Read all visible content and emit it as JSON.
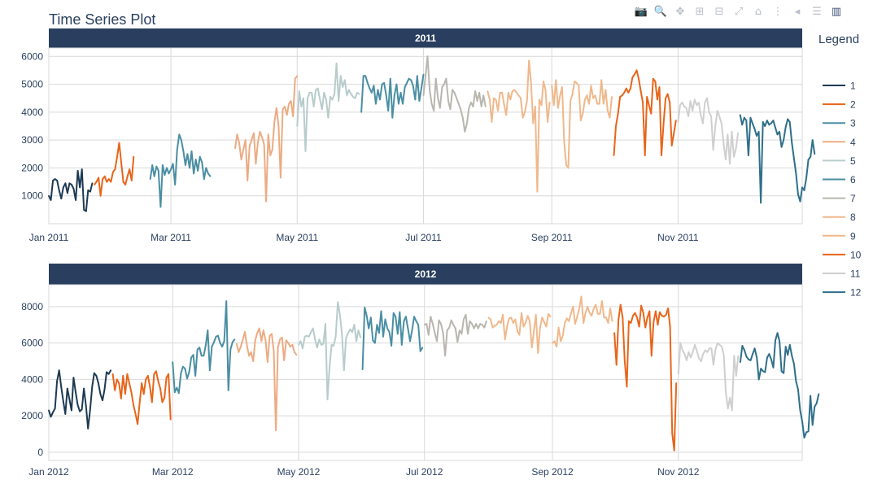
{
  "title": "Time Series Plot",
  "modebar": [
    {
      "name": "camera-icon",
      "glyph": "📷"
    },
    {
      "name": "zoom-icon",
      "glyph": "🔍"
    },
    {
      "name": "pan-icon",
      "glyph": "✥"
    },
    {
      "name": "zoom-in-icon",
      "glyph": "⊞"
    },
    {
      "name": "zoom-out-icon",
      "glyph": "⊟"
    },
    {
      "name": "autoscale-icon",
      "glyph": "⤢"
    },
    {
      "name": "reset-axes-icon",
      "glyph": "⌂"
    },
    {
      "name": "spike-lines-icon",
      "glyph": "⋮"
    },
    {
      "name": "hover-closest-icon",
      "glyph": "◂"
    },
    {
      "name": "hover-compare-icon",
      "glyph": "☰"
    },
    {
      "name": "plotly-logo-icon",
      "glyph": "▥"
    }
  ],
  "legend": {
    "title": "Legend"
  },
  "colors": {
    "panel_header": "#2a3f5f",
    "grid": "#d9d9d9",
    "tick_text": "#2a3f5f",
    "series": [
      "#1d3a52",
      "#e8651a",
      "#4a8ea3",
      "#ecab82",
      "#b7cccb",
      "#4a8ea3",
      "#b8b6ae",
      "#f0b88b",
      "#f0b88b",
      "#e8651a",
      "#cfcfcf",
      "#2e6f8a"
    ]
  },
  "chart_data": [
    {
      "type": "line",
      "title": "2011",
      "x_ticks": [
        "Jan 2011",
        "Mar 2011",
        "May 2011",
        "Jul 2011",
        "Sep 2011",
        "Nov 2011"
      ],
      "y_ticks": [
        1000,
        2000,
        3000,
        4000,
        5000,
        6000
      ],
      "ylim": [
        0,
        6300
      ],
      "xlabel": "",
      "ylabel": "",
      "series": [
        {
          "name": "1",
          "start": "2011-01-01",
          "values": [
            1000,
            850,
            1550,
            1600,
            1550,
            1200,
            900,
            1300,
            1450,
            1100,
            1450,
            1400,
            1250,
            850,
            1900,
            1300,
            1950,
            500,
            450,
            1200,
            1150,
            1450
          ]
        },
        {
          "name": "2",
          "start": "2011-01-23",
          "values": [
            1400,
            1500,
            1650,
            1000,
            1600,
            1700,
            1500,
            1600,
            1500,
            1850,
            1950,
            2400,
            2900,
            2200,
            1500,
            1400,
            1700,
            1950,
            1550,
            2400
          ]
        },
        {
          "name": "3",
          "start": "2011-02-19",
          "values": [
            1600,
            2100,
            1700,
            2050,
            1900,
            600,
            2100,
            1750,
            2000,
            1800,
            1950,
            2150,
            1400,
            2650,
            3200,
            3000,
            2600,
            2100,
            2500,
            2000,
            2600,
            1800,
            2300,
            1900,
            2400,
            2200,
            1600,
            2000,
            1800,
            1700
          ]
        },
        {
          "name": "4",
          "start": "2011-04-01",
          "values": [
            2700,
            3200,
            2900,
            2300,
            2650,
            3000,
            1550,
            2800,
            3000,
            3250,
            2150,
            2900,
            3300,
            3100,
            2850,
            800,
            3200,
            2450,
            2650,
            3650,
            4150,
            3500,
            1650,
            4100,
            4200,
            3900,
            4300,
            4400,
            3850,
            5200,
            5300
          ]
        },
        {
          "name": "5",
          "start": "2011-05-01",
          "values": [
            3500,
            4750,
            4200,
            4500,
            2600,
            4500,
            4700,
            4700,
            4200,
            4800,
            4850,
            4450,
            4100,
            4700,
            4450,
            3800,
            4550,
            4450,
            4650,
            5750,
            4400,
            5300,
            4900,
            5150,
            4600,
            4800,
            4650,
            4550,
            4500,
            4700,
            4650
          ]
        },
        {
          "name": "6",
          "start": "2011-06-01",
          "values": [
            4000,
            5300,
            5300,
            5050,
            4850,
            4700,
            4950,
            4300,
            4800,
            4450,
            5000,
            5050,
            4600,
            4050,
            5200,
            3800,
            4600,
            5000,
            4300,
            4700,
            4300,
            4900,
            5050,
            5200,
            5150,
            4950,
            4450,
            5300,
            4400,
            4850,
            5350
          ]
        },
        {
          "name": "7",
          "start": "2011-07-01",
          "values": [
            4600,
            5300,
            6000,
            4800,
            4300,
            4050,
            5200,
            4500,
            4150,
            4900,
            5000,
            5200,
            4400,
            4100,
            4800,
            4700,
            4500,
            4300,
            4100,
            3800,
            3300,
            3600,
            4150,
            4350,
            4200,
            4750,
            4400,
            4700,
            4200,
            4600,
            4200
          ]
        },
        {
          "name": "8",
          "start": "2011-08-01",
          "values": [
            4750,
            4450,
            3650,
            4500,
            4450,
            4050,
            4700,
            4700,
            4250,
            3900,
            4700,
            4450,
            4750,
            4800,
            4700,
            4600,
            4500,
            3800,
            4000,
            4400,
            5850,
            5050,
            3600,
            4200,
            1150,
            4450,
            4250,
            5100,
            4800,
            3650,
            4350
          ]
        },
        {
          "name": "9",
          "start": "2011-09-01",
          "values": [
            4950,
            4250,
            5150,
            4150,
            4600,
            4900,
            2950,
            2100,
            2000,
            4400,
            4650,
            5100,
            5050,
            4950,
            3700,
            3950,
            4450,
            4600,
            4300,
            4950,
            4500,
            4600,
            4300,
            4300,
            5150,
            4300,
            4800,
            4050,
            3800,
            4550
          ]
        },
        {
          "name": "10",
          "start": "2011-10-01",
          "values": [
            2450,
            3500,
            3950,
            4550,
            4600,
            4700,
            4850,
            4700,
            4850,
            5250,
            5350,
            5500,
            5200,
            4750,
            4350,
            2450,
            4550,
            4250,
            3950,
            5200,
            5100,
            4450,
            4900,
            2450,
            3600,
            4500,
            4650,
            4350,
            2800,
            3250,
            3700
          ]
        },
        {
          "name": "11",
          "start": "2011-11-01",
          "values": [
            3650,
            4250,
            4350,
            4200,
            4150,
            3850,
            4400,
            4050,
            4450,
            4250,
            4350,
            3900,
            3600,
            4350,
            4500,
            4000,
            3850,
            2650,
            3500,
            4050,
            3850,
            3600,
            2900,
            2300,
            3200,
            2150,
            3300,
            2400,
            2700,
            3250
          ]
        },
        {
          "name": "12",
          "start": "2011-12-01",
          "values": [
            3900,
            3550,
            3800,
            3700,
            2450,
            3800,
            3600,
            3400,
            3150,
            3300,
            750,
            3650,
            3500,
            3700,
            3550,
            3600,
            3700,
            3450,
            3200,
            3300,
            2750,
            3000,
            3450,
            3750,
            3650,
            2900,
            2350,
            1800,
            1050,
            800,
            1300,
            1200,
            1650,
            2300,
            2400,
            3000,
            2500
          ]
        }
      ]
    },
    {
      "type": "line",
      "title": "2012",
      "x_ticks": [
        "Jan 2012",
        "Mar 2012",
        "May 2012",
        "Jul 2012",
        "Sep 2012",
        "Nov 2012"
      ],
      "y_ticks": [
        0,
        2000,
        4000,
        6000,
        8000
      ],
      "ylim": [
        -450,
        9200
      ],
      "xlabel": "",
      "ylabel": "",
      "series": [
        {
          "name": "1",
          "start": "2012-01-01",
          "values": [
            2300,
            1950,
            2200,
            2400,
            3900,
            4500,
            3600,
            2800,
            2100,
            3500,
            2900,
            2300,
            4100,
            3300,
            2600,
            2250,
            2350,
            3500,
            2550,
            1300,
            2300,
            3600,
            4350,
            4200,
            3800,
            3200,
            2850,
            3450,
            4400,
            4300,
            4500
          ]
        },
        {
          "name": "2",
          "start": "2012-02-01",
          "values": [
            4300,
            3400,
            4000,
            3800,
            2950,
            4200,
            3200,
            4300,
            3800,
            3300,
            2600,
            2100,
            1550,
            2700,
            3800,
            3200,
            4000,
            4200,
            3600,
            2750,
            4300,
            4450,
            3900,
            3500,
            2750,
            3000,
            4100,
            4300,
            1800
          ]
        },
        {
          "name": "3",
          "start": "2012-03-01",
          "values": [
            4950,
            3300,
            3550,
            3250,
            4350,
            4700,
            4600,
            4050,
            4400,
            5200,
            5350,
            4200,
            5650,
            5750,
            5300,
            5300,
            5850,
            6700,
            4500,
            5800,
            6050,
            6350,
            6400,
            6000,
            5800,
            6100,
            8300,
            3400,
            5650,
            6050,
            6200
          ]
        },
        {
          "name": "4",
          "start": "2012-04-01",
          "values": [
            5950,
            5500,
            5800,
            6200,
            6600,
            5850,
            5300,
            5500,
            5000,
            6150,
            6550,
            6800,
            6100,
            6700,
            6150,
            4950,
            6400,
            6500,
            5550,
            1200,
            5750,
            6200,
            6300,
            5050,
            6150,
            6000,
            5800,
            5900,
            5500,
            5350
          ]
        },
        {
          "name": "5",
          "start": "2012-05-01",
          "values": [
            5900,
            6100,
            5700,
            6350,
            6400,
            6350,
            6600,
            6800,
            6200,
            5750,
            6200,
            5900,
            5950,
            7050,
            2900,
            4650,
            5900,
            5850,
            6350,
            8250,
            7600,
            6500,
            4500,
            6250,
            6550,
            6750,
            6600,
            7000,
            6100,
            6700,
            6300
          ]
        },
        {
          "name": "6",
          "start": "2012-06-01",
          "values": [
            4550,
            7950,
            7500,
            6800,
            7400,
            6150,
            6000,
            7000,
            6550,
            7750,
            6350,
            7300,
            6800,
            6600,
            5850,
            7650,
            7450,
            6500,
            7700,
            5900,
            7200,
            7450,
            6800,
            6100,
            6700,
            7450,
            7200,
            7000,
            5550,
            5750
          ]
        },
        {
          "name": "7",
          "start": "2012-07-01",
          "values": [
            7000,
            7050,
            6450,
            7450,
            7050,
            6550,
            6100,
            7250,
            7050,
            6550,
            5300,
            6700,
            6850,
            7250,
            7000,
            6800,
            6050,
            6700,
            6500,
            7300,
            7550,
            6500,
            7200,
            7050,
            6800,
            7050,
            6800,
            7050,
            7000,
            6850,
            7200
          ]
        },
        {
          "name": "8",
          "start": "2012-08-01",
          "values": [
            7400,
            7300,
            6850,
            6950,
            7000,
            7200,
            7100,
            7550,
            6200,
            6900,
            7350,
            7400,
            7100,
            7300,
            6650,
            6450,
            7650,
            6900,
            7100,
            7500,
            7200,
            5750,
            6650,
            7550,
            5450,
            6850,
            7400,
            7150,
            6900,
            7600,
            7450
          ]
        },
        {
          "name": "9",
          "start": "2012-09-01",
          "values": [
            6000,
            6100,
            5800,
            6850,
            6100,
            6400,
            7100,
            7350,
            7200,
            7650,
            8000,
            7050,
            7450,
            7900,
            8550,
            7100,
            7650,
            8000,
            7650,
            7500,
            7900,
            8100,
            7600,
            7600,
            8300,
            7400,
            7400,
            7100,
            7900,
            7200
          ]
        },
        {
          "name": "10",
          "start": "2012-10-01",
          "values": [
            6550,
            4800,
            7300,
            8100,
            7400,
            5050,
            3600,
            7200,
            7100,
            7500,
            7650,
            7400,
            6900,
            8050,
            7650,
            6850,
            7400,
            7750,
            5300,
            7150,
            7750,
            7000,
            7700,
            7500,
            7450,
            7550,
            7900,
            6900,
            1050,
            100,
            3800
          ]
        },
        {
          "name": "11",
          "start": "2012-11-01",
          "values": [
            4300,
            6000,
            5600,
            5400,
            5050,
            5500,
            5200,
            5500,
            5900,
            5550,
            5150,
            5000,
            5400,
            5600,
            5500,
            5700,
            5700,
            4800,
            5650,
            6000,
            5900,
            5800,
            5350,
            3300,
            2400,
            3000,
            2300,
            5300,
            4200,
            5300
          ]
        },
        {
          "name": "12",
          "start": "2012-12-01",
          "values": [
            4950,
            5850,
            5600,
            5250,
            5100,
            5050,
            5400,
            5700,
            5200,
            4000,
            4600,
            4450,
            4400,
            5200,
            5400,
            5100,
            4650,
            6150,
            6550,
            6100,
            4450,
            4350,
            5800,
            5350,
            5900,
            5300,
            4850,
            3900,
            3450,
            2300,
            1700,
            800,
            1100,
            1150,
            3100,
            1500,
            2500,
            2700,
            3200
          ]
        }
      ]
    }
  ]
}
